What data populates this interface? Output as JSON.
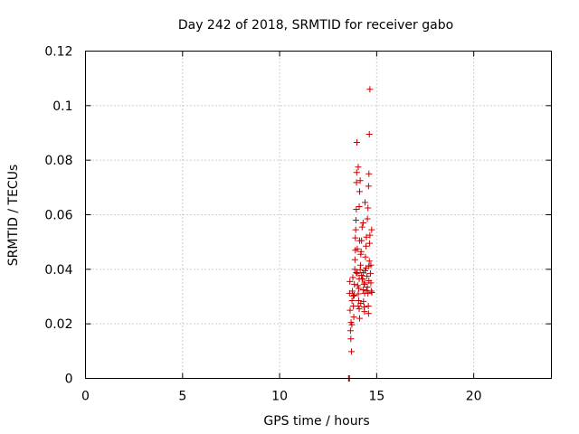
{
  "chart_data": {
    "type": "scatter",
    "title": "Day 242 of 2018, SRMTID for receiver gabo",
    "xlabel": "GPS time / hours",
    "ylabel": "SRMTID / TECUs",
    "xlim": [
      0,
      24
    ],
    "ylim": [
      0,
      0.12
    ],
    "x_ticks": [
      0,
      5,
      10,
      15,
      20
    ],
    "x_tick_labels": [
      "0",
      "5",
      "10",
      "15",
      "20"
    ],
    "y_ticks": [
      0,
      0.02,
      0.04,
      0.06,
      0.08,
      0.1,
      0.12
    ],
    "y_tick_labels": [
      "0",
      "0.02",
      "0.04",
      "0.06",
      "0.08",
      "0.1",
      "0.12"
    ],
    "grid": true,
    "marker": "+",
    "series": [
      {
        "name": "SRMTID",
        "color": "#cc0000",
        "points": [
          [
            13.55,
            0.0
          ],
          [
            13.58,
            0.0
          ],
          [
            13.6,
            0.0
          ],
          [
            13.6,
            0.0312
          ],
          [
            13.62,
            0.0355
          ],
          [
            13.63,
            0.025
          ],
          [
            13.65,
            0.0175
          ],
          [
            13.67,
            0.0145
          ],
          [
            13.7,
            0.0098
          ],
          [
            13.68,
            0.0205
          ],
          [
            13.72,
            0.0197
          ],
          [
            13.73,
            0.0285
          ],
          [
            13.75,
            0.032
          ],
          [
            13.77,
            0.037
          ],
          [
            13.8,
            0.0302
          ],
          [
            13.8,
            0.0265
          ],
          [
            13.82,
            0.0225
          ],
          [
            13.84,
            0.0305
          ],
          [
            13.85,
            0.0345
          ],
          [
            13.87,
            0.04
          ],
          [
            13.88,
            0.0435
          ],
          [
            13.9,
            0.047
          ],
          [
            13.9,
            0.0515
          ],
          [
            13.92,
            0.0545
          ],
          [
            13.93,
            0.058
          ],
          [
            13.95,
            0.062
          ],
          [
            13.96,
            0.0718
          ],
          [
            13.97,
            0.0755
          ],
          [
            13.98,
            0.0865
          ],
          [
            14.0,
            0.0385
          ],
          [
            14.02,
            0.034
          ],
          [
            14.05,
            0.031
          ],
          [
            14.07,
            0.0285
          ],
          [
            14.08,
            0.033
          ],
          [
            14.1,
            0.0365
          ],
          [
            14.1,
            0.0255
          ],
          [
            14.12,
            0.022
          ],
          [
            14.15,
            0.0398
          ],
          [
            14.17,
            0.0415
          ],
          [
            14.18,
            0.0455
          ],
          [
            14.2,
            0.0465
          ],
          [
            14.22,
            0.0505
          ],
          [
            14.25,
            0.0555
          ],
          [
            14.1,
            0.063
          ],
          [
            14.12,
            0.0685
          ],
          [
            14.15,
            0.0725
          ],
          [
            14.05,
            0.0775
          ],
          [
            14.28,
            0.0365
          ],
          [
            14.3,
            0.0325
          ],
          [
            14.32,
            0.0282
          ],
          [
            14.35,
            0.0262
          ],
          [
            14.37,
            0.0245
          ],
          [
            14.38,
            0.035
          ],
          [
            14.4,
            0.0395
          ],
          [
            14.42,
            0.0445
          ],
          [
            14.45,
            0.0485
          ],
          [
            14.47,
            0.0518
          ],
          [
            14.3,
            0.057
          ],
          [
            14.4,
            0.0645
          ],
          [
            14.5,
            0.0375
          ],
          [
            14.52,
            0.0335
          ],
          [
            14.55,
            0.0312
          ],
          [
            14.57,
            0.0265
          ],
          [
            14.58,
            0.0238
          ],
          [
            14.6,
            0.0412
          ],
          [
            14.62,
            0.043
          ],
          [
            14.63,
            0.0495
          ],
          [
            14.65,
            0.0525
          ],
          [
            14.52,
            0.0585
          ],
          [
            14.55,
            0.0625
          ],
          [
            14.58,
            0.0705
          ],
          [
            14.6,
            0.075
          ],
          [
            14.62,
            0.0895
          ],
          [
            14.65,
            0.106
          ],
          [
            14.68,
            0.0385
          ],
          [
            14.7,
            0.035
          ],
          [
            14.72,
            0.032
          ],
          [
            14.74,
            0.0545
          ],
          [
            14.7,
            0.0415
          ],
          [
            14.75,
            0.0315
          ],
          [
            14.0,
            0.0475
          ],
          [
            14.22,
            0.0378
          ],
          [
            14.38,
            0.0312
          ],
          [
            14.48,
            0.0322
          ],
          [
            14.6,
            0.0358
          ],
          [
            14.05,
            0.0265
          ],
          [
            14.3,
            0.0388
          ],
          [
            14.45,
            0.0405
          ],
          [
            14.12,
            0.0505
          ],
          [
            14.25,
            0.0365
          ],
          [
            14.35,
            0.0345
          ],
          [
            14.18,
            0.0275
          ],
          [
            13.95,
            0.0388
          ]
        ]
      }
    ]
  }
}
